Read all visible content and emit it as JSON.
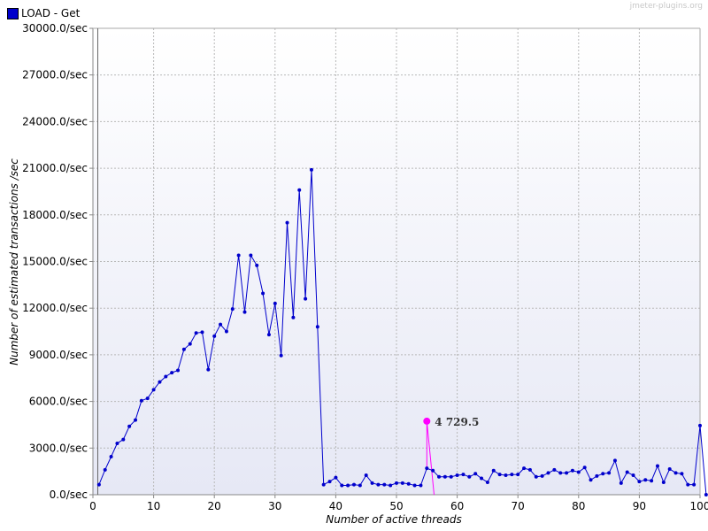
{
  "chart_data": {
    "type": "line",
    "legend": {
      "label": "LOAD - Get",
      "placement": "top-left"
    },
    "watermark": "jmeter-plugins.org",
    "xlabel": "Number of active threads",
    "ylabel": "Number of estimated transactions /sec",
    "xlim": [
      0,
      100
    ],
    "ylim": [
      0,
      30000
    ],
    "x_ticks": [
      "0",
      "10",
      "20",
      "30",
      "40",
      "50",
      "60",
      "70",
      "80",
      "90",
      "100"
    ],
    "y_ticks": [
      "0.0/sec",
      "3000.0/sec",
      "6000.0/sec",
      "9000.0/sec",
      "12000.0/sec",
      "15000.0/sec",
      "18000.0/sec",
      "21000.0/sec",
      "24000.0/sec",
      "27000.0/sec",
      "30000.0/sec"
    ],
    "grid": true,
    "series": [
      {
        "name": "LOAD - Get",
        "color": "#0000cc",
        "x": [
          1,
          2,
          3,
          4,
          5,
          6,
          7,
          8,
          9,
          10,
          11,
          12,
          13,
          14,
          15,
          16,
          17,
          18,
          19,
          20,
          21,
          22,
          23,
          24,
          25,
          26,
          27,
          28,
          29,
          30,
          31,
          32,
          33,
          34,
          35,
          36,
          37,
          38,
          39,
          40,
          41,
          42,
          43,
          44,
          45,
          46,
          47,
          48,
          49,
          50,
          51,
          52,
          53,
          54,
          55,
          56,
          57,
          58,
          59,
          60,
          61,
          62,
          63,
          64,
          65,
          66,
          67,
          68,
          69,
          70,
          71,
          72,
          73,
          74,
          75,
          76,
          77,
          78,
          79,
          80,
          81,
          82,
          83,
          84,
          85,
          86,
          87,
          88,
          89,
          90,
          91,
          92,
          93,
          94,
          95,
          96,
          97,
          98,
          99,
          100,
          101
        ],
        "y": [
          650,
          1600,
          2450,
          3300,
          3550,
          4400,
          4800,
          6050,
          6200,
          6750,
          7250,
          7600,
          7850,
          8000,
          9350,
          9700,
          10400,
          10450,
          8050,
          10200,
          10950,
          10500,
          11950,
          15400,
          11750,
          15400,
          14750,
          12950,
          10300,
          12300,
          8950,
          17500,
          11400,
          19600,
          12600,
          20900,
          10800,
          650,
          850,
          1100,
          600,
          600,
          650,
          600,
          1250,
          750,
          650,
          650,
          600,
          750,
          750,
          700,
          600,
          600,
          1700,
          1550,
          1150,
          1150,
          1150,
          1250,
          1300,
          1150,
          1350,
          1050,
          800,
          1550,
          1300,
          1250,
          1300,
          1300,
          1700,
          1600,
          1150,
          1200,
          1400,
          1600,
          1400,
          1400,
          1550,
          1450,
          1750,
          950,
          1200,
          1350,
          1400,
          2200,
          750,
          1450,
          1250,
          850,
          950,
          900,
          1850,
          800,
          1650,
          1400,
          1350,
          650,
          650,
          4450,
          0
        ]
      },
      {
        "name": "",
        "color": "#ff00ff",
        "x": [
          55,
          55,
          56.2
        ],
        "y": [
          1700,
          4729.5,
          0
        ]
      }
    ],
    "annotations": [
      {
        "text": "4 729.5",
        "x": 55,
        "y": 4729.5,
        "color": "#ff00ff"
      }
    ]
  }
}
